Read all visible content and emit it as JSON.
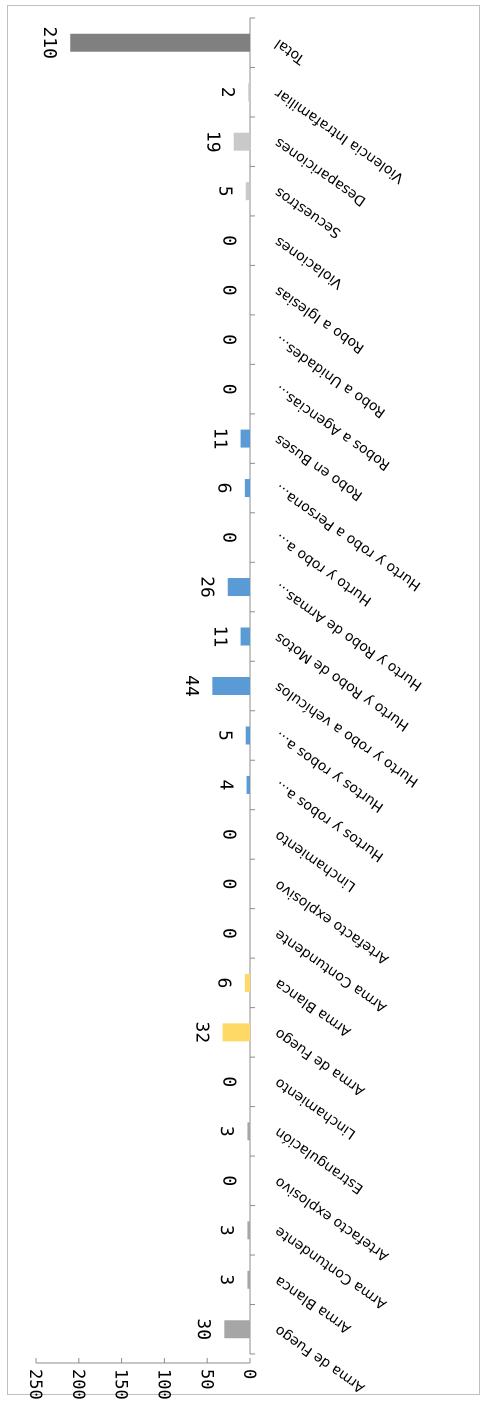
{
  "chart_data": {
    "type": "bar",
    "orientation": "horizontal",
    "ylim": [
      0,
      250
    ],
    "ticks": [
      0,
      50,
      100,
      150,
      200,
      250
    ],
    "grid": false,
    "legend": "none",
    "categories": [
      "Arma de Fuego",
      "Arma Blanca",
      "Arma Contundente",
      "Artefacto explosivo",
      "Estrangulación",
      "Linchamiento",
      "Arma de Fuego",
      "Arma Blanca",
      "Arma Contundente",
      "Artefacto explosivo",
      "Linchamiento",
      "Hurtos y robos a...",
      "Hurtos y robos a...",
      "Hurto y robo a vehículos",
      "Hurto y Robo de Motos",
      "Hurto y Robo de Armas...",
      "Hurto y robo a...",
      "Hurto y robo a Persona...",
      "Robo en Buses",
      "Robos a Agencias...",
      "Robo a Unidades...",
      "Robo a Iglesias",
      "Violaciones",
      "Secuestros",
      "Desapariciones",
      "Violencia Intrafamiliar",
      "Total"
    ],
    "values": [
      30,
      3,
      3,
      0,
      3,
      0,
      32,
      6,
      0,
      0,
      0,
      4,
      5,
      44,
      11,
      26,
      0,
      6,
      11,
      0,
      0,
      0,
      0,
      5,
      19,
      2,
      210
    ],
    "colors": [
      "#a6a6a6",
      "#a6a6a6",
      "#a6a6a6",
      "#a6a6a6",
      "#a6a6a6",
      "#a6a6a6",
      "#ffd966",
      "#ffd966",
      "#ffd966",
      "#ffd966",
      "#ffd966",
      "#5b9bd5",
      "#5b9bd5",
      "#5b9bd5",
      "#5b9bd5",
      "#5b9bd5",
      "#5b9bd5",
      "#5b9bd5",
      "#5b9bd5",
      "#5b9bd5",
      "#5b9bd5",
      "#5b9bd5",
      "#c9c9c9",
      "#c9c9c9",
      "#c9c9c9",
      "#c9c9c9",
      "#808080"
    ]
  }
}
